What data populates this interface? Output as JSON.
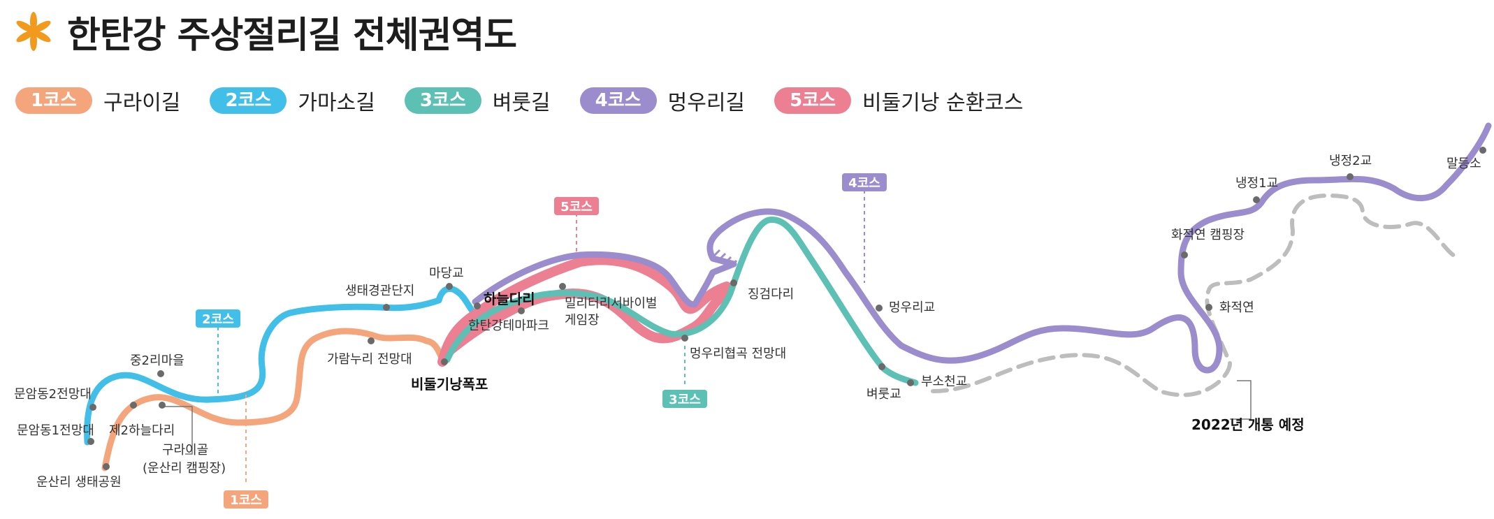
{
  "title": "한탄강 주상절리길 전체권역도",
  "icon": "orange-asterisk-icon",
  "colors": {
    "course1": "#f4a57c",
    "course2": "#41bfe8",
    "course3": "#5cc0b5",
    "course4": "#9b8ccd",
    "course5": "#ec7f92",
    "planned": "#bdbdbd",
    "marker": "#6a6a6a"
  },
  "legend": [
    {
      "badge": "1코스",
      "name": "구라이길"
    },
    {
      "badge": "2코스",
      "name": "가마소길"
    },
    {
      "badge": "3코스",
      "name": "벼룻길"
    },
    {
      "badge": "4코스",
      "name": "멍우리길"
    },
    {
      "badge": "5코스",
      "name": "비둘기낭 순환코스"
    }
  ],
  "map": {
    "labels": {
      "l1": "문암동2전망대",
      "l2": "중2리마을",
      "l3": "문암동1전망대",
      "l4": "제2하늘다리",
      "l5": "구라이골",
      "l6": "(운산리 캠핑장)",
      "l7": "운산리 생태공원",
      "l8": "생태경관단지",
      "l9": "마당교",
      "l10": "가람누리 전망대",
      "l11": "하늘다리",
      "l12": "한탄강테마파크",
      "l13": "밀리터리서바이벌",
      "l14": "게임장",
      "l15": "비둘기낭폭포",
      "l16": "징검다리",
      "l17": "멍우리협곡 전망대",
      "l18": "멍우리교",
      "l19": "벼룻교",
      "l20": "부소천교",
      "l21": "화적연 캠핑장",
      "l22": "화적연",
      "l23": "냉정1교",
      "l24": "냉정2교",
      "l25": "말등소",
      "l26": "2022년 개통 예정"
    },
    "tags": {
      "t1": "1코스",
      "t2": "2코스",
      "t3": "3코스",
      "t4": "4코스",
      "t5": "5코스"
    }
  }
}
